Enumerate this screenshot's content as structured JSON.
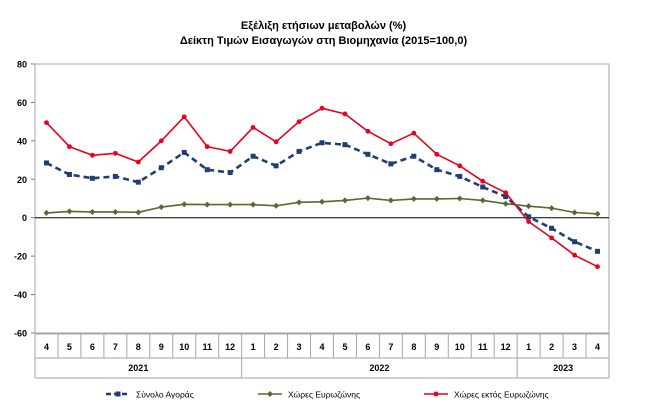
{
  "chart_data": {
    "type": "line",
    "title": "Εξέλιξη ετήσιων μεταβολών (%)",
    "subtitle": "Δείκτη Τιμών Εισαγωγών στη Βιομηχανία (2015=100,0)",
    "xlabel": "",
    "ylabel": "",
    "ylim": [
      -60,
      80
    ],
    "yticks": [
      80,
      60,
      40,
      20,
      0,
      -20,
      -40,
      -60
    ],
    "grid": false,
    "legend_position": "bottom",
    "categories": [
      "4",
      "5",
      "6",
      "7",
      "8",
      "9",
      "10",
      "11",
      "12",
      "1",
      "2",
      "3",
      "4",
      "5",
      "6",
      "7",
      "8",
      "9",
      "10",
      "11",
      "12",
      "1",
      "2",
      "3",
      "4"
    ],
    "year_groups": [
      {
        "label": "2021",
        "start": 0,
        "end": 8
      },
      {
        "label": "2022",
        "start": 9,
        "end": 20
      },
      {
        "label": "2023",
        "start": 21,
        "end": 24
      }
    ],
    "series": [
      {
        "name": "Σύνολο Αγοράς",
        "color": "#1f3f74",
        "style": "dashed",
        "marker": "square",
        "values": [
          28.5,
          22.5,
          20.5,
          21.5,
          18.5,
          26.0,
          34.0,
          25.0,
          23.5,
          32.0,
          27.0,
          34.5,
          39.0,
          38.0,
          33.0,
          28.0,
          32.0,
          25.0,
          21.5,
          16.0,
          11.0,
          0.5,
          -5.5,
          -12.5,
          -17.5
        ]
      },
      {
        "name": "Χώρες Ευρωζώνης",
        "color": "#556b2f",
        "style": "solid",
        "marker": "diamond",
        "values": [
          2.5,
          3.3,
          3.0,
          3.0,
          2.8,
          5.5,
          7.0,
          6.8,
          6.8,
          6.8,
          6.2,
          8.0,
          8.3,
          9.0,
          10.2,
          9.0,
          9.8,
          9.8,
          10.0,
          9.0,
          7.3,
          6.0,
          5.0,
          2.7,
          2.0
        ]
      },
      {
        "name": "Χώρες εκτός Ευρωζώνης",
        "color": "#e8001c",
        "style": "solid",
        "marker": "circle",
        "values": [
          49.5,
          37.0,
          32.5,
          33.5,
          29.0,
          40.0,
          52.5,
          37.0,
          34.5,
          47.0,
          39.5,
          50.0,
          57.0,
          54.0,
          45.0,
          38.5,
          44.0,
          33.0,
          27.0,
          19.0,
          13.0,
          -2.0,
          -10.5,
          -19.5,
          -25.5
        ]
      }
    ]
  }
}
